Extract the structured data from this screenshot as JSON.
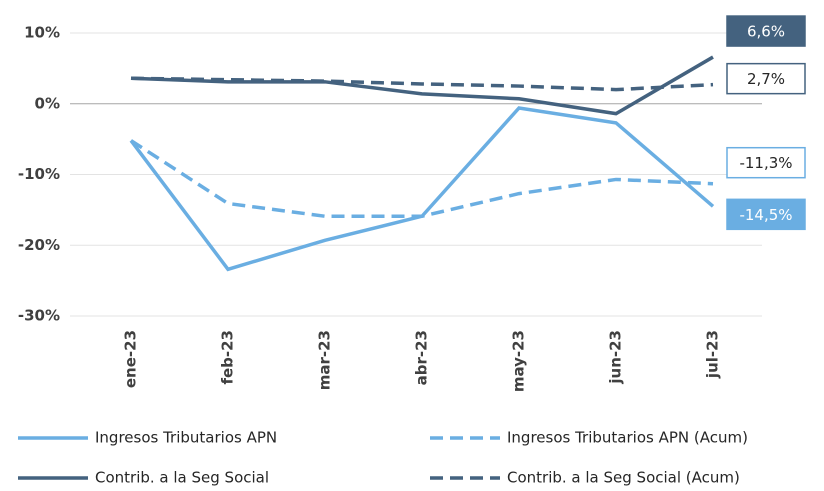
{
  "chart_data": {
    "type": "line",
    "categories": [
      "ene-23",
      "feb-23",
      "mar-23",
      "abr-23",
      "may-23",
      "jun-23",
      "jul-23"
    ],
    "series": [
      {
        "name": "Ingresos Tributarios APN",
        "color": "#6aaee2",
        "dashed": false,
        "values": [
          -5.2,
          -23.4,
          -19.3,
          -15.9,
          -0.6,
          -2.7,
          -14.5
        ],
        "value_labels": [
          null,
          null,
          null,
          null,
          null,
          null,
          "-14,5%"
        ]
      },
      {
        "name": "Ingresos Tributarios APN (Acum)",
        "color": "#6aaee2",
        "dashed": true,
        "values": [
          -5.2,
          -14.1,
          -15.9,
          -15.9,
          -12.7,
          -10.7,
          -11.3
        ],
        "value_labels": [
          null,
          null,
          null,
          null,
          null,
          null,
          "-11,3%"
        ]
      },
      {
        "name": "Contrib. a la Seg Social",
        "color": "#44627f",
        "dashed": false,
        "values": [
          3.6,
          3.1,
          3.1,
          1.4,
          0.7,
          -1.4,
          6.6
        ],
        "value_labels": [
          null,
          null,
          null,
          null,
          null,
          null,
          "6,6%"
        ]
      },
      {
        "name": "Contrib. a la Seg Social (Acum)",
        "color": "#44627f",
        "dashed": true,
        "values": [
          3.6,
          3.4,
          3.2,
          2.8,
          2.5,
          2.0,
          2.7
        ],
        "value_labels": [
          null,
          null,
          null,
          null,
          null,
          null,
          "2,7%"
        ]
      }
    ],
    "ylim": [
      -30,
      10
    ],
    "yticks": [
      {
        "value": -30,
        "label": "-30%"
      },
      {
        "value": -20,
        "label": "-20%"
      },
      {
        "value": -10,
        "label": "-10%"
      },
      {
        "value": 0,
        "label": "0%"
      },
      {
        "value": 10,
        "label": "10%"
      }
    ],
    "grid": true
  }
}
